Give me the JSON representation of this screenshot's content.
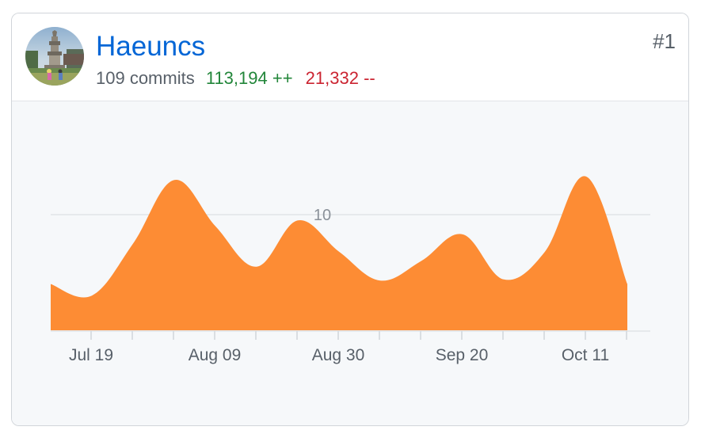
{
  "contributor": {
    "username": "Haeuncs",
    "rank": "#1",
    "commits_text": "109 commits",
    "additions_text": "113,194 ++",
    "deletions_text": "21,332 --"
  },
  "colors": {
    "area": "#fd8c34",
    "link": "#0366d6",
    "additions": "#22863a",
    "deletions": "#cb2431",
    "gridline": "#e1e4e8",
    "chart_background": "#f6f8fa"
  },
  "chart_data": {
    "type": "area",
    "title": "",
    "xlabel": "",
    "ylabel": "",
    "x_tick_labels": [
      "Jul 19",
      "Aug 09",
      "Aug 30",
      "Sep 20",
      "Oct 11"
    ],
    "y_tick_labels": [
      "10"
    ],
    "ylim": [
      0,
      13
    ],
    "grid": true,
    "x": [
      "Jul 12",
      "Jul 19",
      "Jul 26",
      "Aug 02",
      "Aug 09",
      "Aug 16",
      "Aug 23",
      "Aug 30",
      "Sep 06",
      "Sep 13",
      "Sep 20",
      "Sep 27",
      "Oct 04",
      "Oct 11",
      "Oct 18"
    ],
    "values": [
      4,
      3,
      7.5,
      13,
      9,
      5.5,
      9.5,
      6.8,
      4.3,
      6,
      8.3,
      4.4,
      6.8,
      13.3,
      4
    ]
  }
}
